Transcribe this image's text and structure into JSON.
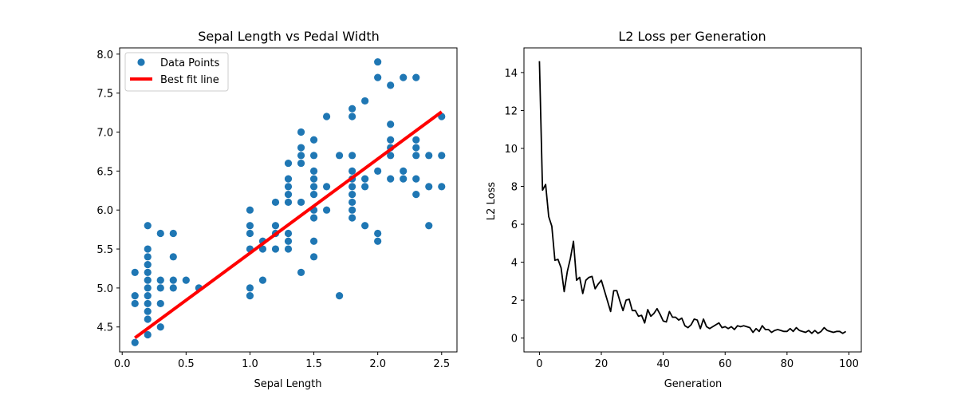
{
  "chart_data": [
    {
      "type": "scatter",
      "title": "Sepal Length vs Pedal Width",
      "xlabel": "Sepal Length",
      "ylabel": "",
      "xlim": [
        -0.02,
        2.62
      ],
      "ylim": [
        4.18,
        8.08
      ],
      "xticks": [
        0.0,
        0.5,
        1.0,
        1.5,
        2.0,
        2.5
      ],
      "xtick_labels": [
        "0.0",
        "0.5",
        "1.0",
        "1.5",
        "2.0",
        "2.5"
      ],
      "yticks": [
        4.5,
        5.0,
        5.5,
        6.0,
        6.5,
        7.0,
        7.5,
        8.0
      ],
      "ytick_labels": [
        "4.5",
        "5.0",
        "5.5",
        "6.0",
        "6.5",
        "7.0",
        "7.5",
        "8.0"
      ],
      "grid": false,
      "legend": {
        "position": "top-left",
        "entries": [
          {
            "label": "Data Points",
            "kind": "marker",
            "color": "#1f77b4"
          },
          {
            "label": "Best fit line",
            "kind": "line",
            "color": "#ff0000"
          }
        ]
      },
      "series": [
        {
          "name": "Data Points",
          "color": "#1f77b4",
          "points": [
            [
              0.1,
              4.3
            ],
            [
              0.1,
              4.8
            ],
            [
              0.1,
              4.9
            ],
            [
              0.1,
              5.2
            ],
            [
              0.2,
              4.4
            ],
            [
              0.2,
              4.6
            ],
            [
              0.2,
              4.7
            ],
            [
              0.2,
              4.8
            ],
            [
              0.2,
              4.9
            ],
            [
              0.2,
              5.0
            ],
            [
              0.2,
              5.1
            ],
            [
              0.2,
              5.2
            ],
            [
              0.2,
              5.3
            ],
            [
              0.2,
              5.4
            ],
            [
              0.2,
              5.5
            ],
            [
              0.2,
              5.8
            ],
            [
              0.3,
              4.5
            ],
            [
              0.3,
              4.8
            ],
            [
              0.3,
              5.0
            ],
            [
              0.3,
              5.1
            ],
            [
              0.3,
              5.7
            ],
            [
              0.4,
              5.0
            ],
            [
              0.4,
              5.1
            ],
            [
              0.4,
              5.4
            ],
            [
              0.4,
              5.7
            ],
            [
              0.5,
              5.1
            ],
            [
              0.6,
              5.0
            ],
            [
              1.0,
              4.9
            ],
            [
              1.0,
              5.0
            ],
            [
              1.0,
              5.5
            ],
            [
              1.0,
              5.7
            ],
            [
              1.0,
              5.8
            ],
            [
              1.0,
              6.0
            ],
            [
              1.1,
              5.1
            ],
            [
              1.1,
              5.5
            ],
            [
              1.1,
              5.6
            ],
            [
              1.2,
              5.5
            ],
            [
              1.2,
              5.7
            ],
            [
              1.2,
              5.8
            ],
            [
              1.2,
              6.1
            ],
            [
              1.3,
              5.5
            ],
            [
              1.3,
              5.6
            ],
            [
              1.3,
              5.7
            ],
            [
              1.3,
              6.1
            ],
            [
              1.3,
              6.2
            ],
            [
              1.3,
              6.3
            ],
            [
              1.3,
              6.4
            ],
            [
              1.3,
              6.6
            ],
            [
              1.4,
              5.2
            ],
            [
              1.4,
              6.1
            ],
            [
              1.4,
              6.6
            ],
            [
              1.4,
              6.7
            ],
            [
              1.4,
              6.8
            ],
            [
              1.4,
              7.0
            ],
            [
              1.5,
              5.4
            ],
            [
              1.5,
              5.6
            ],
            [
              1.5,
              5.9
            ],
            [
              1.5,
              6.0
            ],
            [
              1.5,
              6.2
            ],
            [
              1.5,
              6.3
            ],
            [
              1.5,
              6.4
            ],
            [
              1.5,
              6.5
            ],
            [
              1.5,
              6.7
            ],
            [
              1.5,
              6.9
            ],
            [
              1.6,
              6.0
            ],
            [
              1.6,
              6.3
            ],
            [
              1.6,
              7.2
            ],
            [
              1.7,
              4.9
            ],
            [
              1.7,
              6.7
            ],
            [
              1.8,
              5.9
            ],
            [
              1.8,
              6.0
            ],
            [
              1.8,
              6.1
            ],
            [
              1.8,
              6.2
            ],
            [
              1.8,
              6.3
            ],
            [
              1.8,
              6.4
            ],
            [
              1.8,
              6.5
            ],
            [
              1.8,
              6.7
            ],
            [
              1.8,
              7.2
            ],
            [
              1.8,
              7.3
            ],
            [
              1.9,
              5.8
            ],
            [
              1.9,
              6.3
            ],
            [
              1.9,
              6.4
            ],
            [
              1.9,
              7.4
            ],
            [
              2.0,
              5.6
            ],
            [
              2.0,
              5.7
            ],
            [
              2.0,
              6.5
            ],
            [
              2.0,
              7.7
            ],
            [
              2.0,
              7.9
            ],
            [
              2.1,
              6.4
            ],
            [
              2.1,
              6.7
            ],
            [
              2.1,
              6.8
            ],
            [
              2.1,
              6.9
            ],
            [
              2.1,
              7.1
            ],
            [
              2.1,
              7.6
            ],
            [
              2.2,
              6.4
            ],
            [
              2.2,
              6.5
            ],
            [
              2.2,
              7.7
            ],
            [
              2.3,
              6.2
            ],
            [
              2.3,
              6.4
            ],
            [
              2.3,
              6.7
            ],
            [
              2.3,
              6.8
            ],
            [
              2.3,
              6.9
            ],
            [
              2.3,
              7.7
            ],
            [
              2.4,
              5.8
            ],
            [
              2.4,
              6.3
            ],
            [
              2.4,
              6.7
            ],
            [
              2.5,
              6.3
            ],
            [
              2.5,
              6.7
            ],
            [
              2.5,
              7.2
            ]
          ]
        },
        {
          "name": "Best fit line",
          "color": "#ff0000",
          "type": "line",
          "points": [
            [
              0.1,
              4.36
            ],
            [
              2.5,
              7.26
            ]
          ]
        }
      ]
    },
    {
      "type": "line",
      "title": "L2 Loss per Generation",
      "xlabel": "Generation",
      "ylabel": "L2 Loss",
      "xlim": [
        -5,
        104
      ],
      "ylim": [
        -0.73,
        15.3
      ],
      "xticks": [
        0,
        20,
        40,
        60,
        80,
        100
      ],
      "xtick_labels": [
        "0",
        "20",
        "40",
        "60",
        "80",
        "100"
      ],
      "yticks": [
        0,
        2,
        4,
        6,
        8,
        10,
        12,
        14
      ],
      "ytick_labels": [
        "0",
        "2",
        "4",
        "6",
        "8",
        "10",
        "12",
        "14"
      ],
      "grid": false,
      "series": [
        {
          "color": "#000000",
          "x": [
            0,
            1,
            2,
            3,
            4,
            5,
            6,
            7,
            8,
            9,
            10,
            11,
            12,
            13,
            14,
            15,
            16,
            17,
            18,
            19,
            20,
            21,
            22,
            23,
            24,
            25,
            26,
            27,
            28,
            29,
            30,
            31,
            32,
            33,
            34,
            35,
            36,
            37,
            38,
            39,
            40,
            41,
            42,
            43,
            44,
            45,
            46,
            47,
            48,
            49,
            50,
            51,
            52,
            53,
            54,
            55,
            56,
            57,
            58,
            59,
            60,
            61,
            62,
            63,
            64,
            65,
            66,
            67,
            68,
            69,
            70,
            71,
            72,
            73,
            74,
            75,
            76,
            77,
            78,
            79,
            80,
            81,
            82,
            83,
            84,
            85,
            86,
            87,
            88,
            89,
            90,
            91,
            92,
            93,
            94,
            95,
            96,
            97,
            98,
            99
          ],
          "values": [
            14.6,
            7.8,
            8.1,
            6.4,
            5.9,
            4.1,
            4.15,
            3.7,
            2.45,
            3.5,
            4.2,
            5.1,
            3.05,
            3.2,
            2.35,
            3.05,
            3.2,
            3.25,
            2.6,
            2.85,
            3.05,
            2.5,
            1.95,
            1.4,
            2.5,
            2.5,
            1.95,
            1.45,
            2.0,
            2.05,
            1.45,
            1.45,
            1.15,
            1.2,
            0.8,
            1.5,
            1.15,
            1.3,
            1.55,
            1.25,
            0.9,
            0.85,
            1.4,
            1.1,
            1.1,
            0.95,
            1.05,
            0.65,
            0.55,
            0.7,
            1.0,
            0.95,
            0.5,
            1.0,
            0.6,
            0.5,
            0.6,
            0.7,
            0.8,
            0.55,
            0.6,
            0.5,
            0.6,
            0.45,
            0.65,
            0.6,
            0.65,
            0.6,
            0.55,
            0.3,
            0.5,
            0.35,
            0.65,
            0.45,
            0.45,
            0.3,
            0.4,
            0.45,
            0.4,
            0.35,
            0.35,
            0.5,
            0.35,
            0.55,
            0.4,
            0.35,
            0.3,
            0.4,
            0.25,
            0.4,
            0.25,
            0.35,
            0.55,
            0.4,
            0.35,
            0.3,
            0.35,
            0.35,
            0.25,
            0.35
          ]
        }
      ]
    }
  ]
}
